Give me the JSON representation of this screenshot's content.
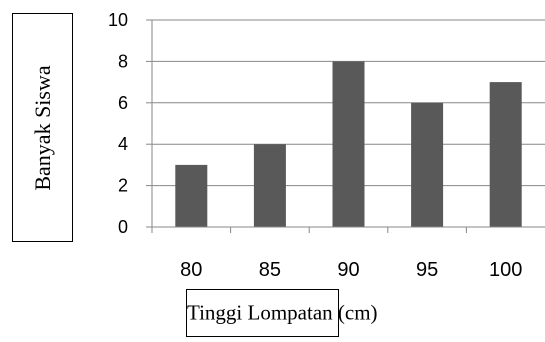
{
  "chart_data": {
    "type": "bar",
    "title": "",
    "categories": [
      "80",
      "85",
      "90",
      "95",
      "100"
    ],
    "values": [
      3,
      4,
      8,
      6,
      7
    ],
    "xlabel": "Tinggi Lompatan (cm)",
    "ylabel": "Banyak Siswa",
    "ylim": [
      0,
      10
    ],
    "yticks": [
      0,
      2,
      4,
      6,
      8,
      10
    ],
    "grid": true,
    "bar_color": "#595959",
    "grid_color": "#878787"
  }
}
